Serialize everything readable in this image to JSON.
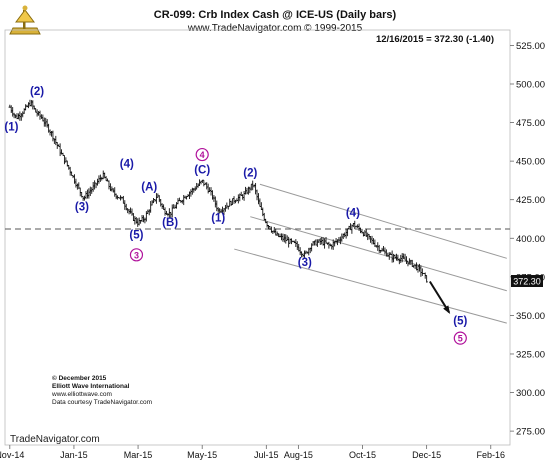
{
  "header": {
    "title": "CR-099:  Crb Index Cash @ ICE-US  (Daily bars)",
    "subtitle": "www.TradeNavigator.com © 1999-2015",
    "quote": "12/16/2015 = 372.30 (-1.40)"
  },
  "footer": {
    "credit_lines": [
      "© December 2015",
      "Elliott Wave International",
      "www.elliottwave.com",
      "Data courtesy TradeNavigator.com"
    ],
    "brand": "TradeNavigator.com"
  },
  "colors": {
    "background": "#ffffff",
    "price_bars": "#111111",
    "wave_label": "#1a1aa8",
    "circle_label": "#b0119b",
    "channel": "#9a9a9a",
    "reference_line": "#555555",
    "last_price_box": "#111111"
  },
  "chart_data": {
    "type": "ohlc",
    "y_axis": {
      "ticks": [
        275,
        300,
        325,
        350,
        375,
        400,
        425,
        450,
        475,
        500,
        525
      ],
      "range": [
        266,
        535
      ],
      "position": "right"
    },
    "x_axis": {
      "ticks": [
        {
          "label": "Nov-14",
          "t": 0
        },
        {
          "label": "Jan-15",
          "t": 2
        },
        {
          "label": "Mar-15",
          "t": 4
        },
        {
          "label": "May-15",
          "t": 6
        },
        {
          "label": "Jul-15",
          "t": 8
        },
        {
          "label": "Aug-15",
          "t": 9
        },
        {
          "label": "Oct-15",
          "t": 11
        },
        {
          "label": "Dec-15",
          "t": 13
        },
        {
          "label": "Feb-16",
          "t": 15
        }
      ],
      "range": [
        -0.15,
        15.6
      ]
    },
    "price_path": [
      [
        0.0,
        485
      ],
      [
        0.2,
        478
      ],
      [
        0.45,
        483
      ],
      [
        0.65,
        488
      ],
      [
        0.8,
        482
      ],
      [
        1.0,
        478
      ],
      [
        1.3,
        468
      ],
      [
        1.6,
        455
      ],
      [
        1.9,
        443
      ],
      [
        2.1,
        434
      ],
      [
        2.3,
        426
      ],
      [
        2.6,
        433
      ],
      [
        2.9,
        441
      ],
      [
        3.2,
        430
      ],
      [
        3.5,
        425
      ],
      [
        3.7,
        418
      ],
      [
        3.85,
        413
      ],
      [
        4.0,
        410
      ],
      [
        4.2,
        413
      ],
      [
        4.4,
        421
      ],
      [
        4.6,
        428
      ],
      [
        4.8,
        418
      ],
      [
        5.0,
        416
      ],
      [
        5.2,
        422
      ],
      [
        5.5,
        428
      ],
      [
        5.8,
        433
      ],
      [
        6.0,
        437
      ],
      [
        6.15,
        433
      ],
      [
        6.3,
        428
      ],
      [
        6.5,
        418
      ],
      [
        6.7,
        420
      ],
      [
        7.0,
        425
      ],
      [
        7.3,
        428
      ],
      [
        7.5,
        433
      ],
      [
        7.6,
        435
      ],
      [
        7.8,
        420
      ],
      [
        8.0,
        410
      ],
      [
        8.3,
        402
      ],
      [
        8.6,
        399
      ],
      [
        8.9,
        396
      ],
      [
        9.1,
        391
      ],
      [
        9.2,
        389
      ],
      [
        9.4,
        396
      ],
      [
        9.7,
        398
      ],
      [
        10.0,
        395
      ],
      [
        10.3,
        400
      ],
      [
        10.5,
        404
      ],
      [
        10.7,
        409
      ],
      [
        10.9,
        406
      ],
      [
        11.1,
        402
      ],
      [
        11.4,
        396
      ],
      [
        11.6,
        392
      ],
      [
        11.9,
        388
      ],
      [
        12.2,
        387
      ],
      [
        12.5,
        384
      ],
      [
        12.7,
        381
      ],
      [
        12.85,
        378
      ],
      [
        13.0,
        373
      ]
    ],
    "last_price": 372.3,
    "last_price_label": "372.30",
    "reference_line": 406,
    "channels": [
      {
        "points": [
          [
            7.8,
            435
          ],
          [
            15.5,
            387
          ]
        ]
      },
      {
        "points": [
          [
            7.5,
            414
          ],
          [
            15.5,
            366
          ]
        ]
      },
      {
        "points": [
          [
            7.0,
            393
          ],
          [
            15.5,
            345
          ]
        ]
      }
    ],
    "arrow": {
      "from": [
        13.1,
        372
      ],
      "to": [
        13.7,
        352
      ]
    },
    "annotations": [
      {
        "text": "(1)",
        "t": 0.05,
        "y": 470,
        "style": "wave"
      },
      {
        "text": "(2)",
        "t": 0.85,
        "y": 493,
        "style": "wave"
      },
      {
        "text": "(3)",
        "t": 2.25,
        "y": 418,
        "style": "wave"
      },
      {
        "text": "(4)",
        "t": 3.65,
        "y": 446,
        "style": "wave"
      },
      {
        "text": "(5)",
        "t": 3.95,
        "y": 400,
        "style": "wave"
      },
      {
        "text": "3",
        "t": 3.95,
        "y": 387,
        "style": "circle"
      },
      {
        "text": "(A)",
        "t": 4.35,
        "y": 431,
        "style": "wave"
      },
      {
        "text": "(B)",
        "t": 5.0,
        "y": 408,
        "style": "wave"
      },
      {
        "text": "4",
        "t": 6.0,
        "y": 452,
        "style": "circle"
      },
      {
        "text": "(C)",
        "t": 6.0,
        "y": 442,
        "style": "wave"
      },
      {
        "text": "(1)",
        "t": 6.5,
        "y": 411,
        "style": "wave"
      },
      {
        "text": "(2)",
        "t": 7.5,
        "y": 440,
        "style": "wave"
      },
      {
        "text": "(3)",
        "t": 9.2,
        "y": 382,
        "style": "wave"
      },
      {
        "text": "(4)",
        "t": 10.7,
        "y": 414,
        "style": "wave"
      },
      {
        "text": "(5)",
        "t": 14.05,
        "y": 344,
        "style": "wave"
      },
      {
        "text": "5",
        "t": 14.05,
        "y": 333,
        "style": "circle"
      }
    ]
  }
}
